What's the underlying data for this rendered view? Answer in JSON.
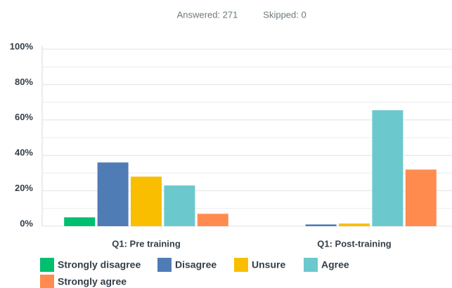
{
  "chart_data": {
    "type": "bar",
    "annotations": [
      "Answered: 271",
      "Skipped: 0"
    ],
    "categories": [
      "Q1: Pre training",
      "Q1: Post-training"
    ],
    "series": [
      {
        "name": "Strongly disagree",
        "color": "#00bf6f",
        "values": [
          5,
          0
        ]
      },
      {
        "name": "Disagree",
        "color": "#507cb6",
        "values": [
          36,
          1
        ]
      },
      {
        "name": "Unsure",
        "color": "#f9be00",
        "values": [
          28,
          1.5
        ]
      },
      {
        "name": "Agree",
        "color": "#6bc8cd",
        "values": [
          23,
          65.5
        ]
      },
      {
        "name": "Strongly agree",
        "color": "#ff8b4f",
        "values": [
          7,
          32
        ]
      }
    ],
    "ylim": [
      0,
      100
    ],
    "yticks": [
      {
        "value": 0,
        "label": "0%"
      },
      {
        "value": 20,
        "label": "20%"
      },
      {
        "value": 40,
        "label": "40%"
      },
      {
        "value": 60,
        "label": "60%"
      },
      {
        "value": 80,
        "label": "80%"
      },
      {
        "value": 100,
        "label": "100%"
      }
    ],
    "minor_yticks": [
      10,
      30,
      50,
      70,
      90
    ],
    "grid": true,
    "legend": "bottom"
  }
}
